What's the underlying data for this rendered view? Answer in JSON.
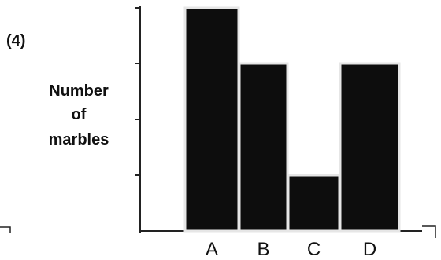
{
  "problem_label": "(4)",
  "chart_data": {
    "type": "bar",
    "title": "",
    "xlabel": "",
    "ylabel_lines": [
      "Number",
      "of",
      "marbles"
    ],
    "categories": [
      "A",
      "B",
      "C",
      "D"
    ],
    "values": [
      4,
      3,
      1,
      3
    ],
    "ylim": [
      0,
      5
    ],
    "y_ticks": [
      1,
      2,
      3,
      4,
      5
    ],
    "y_tick_labels_shown": false,
    "grid": false,
    "legend": "none",
    "bar_color": "#0d0d0d",
    "bar_edge_color": "#e6e6e6"
  }
}
